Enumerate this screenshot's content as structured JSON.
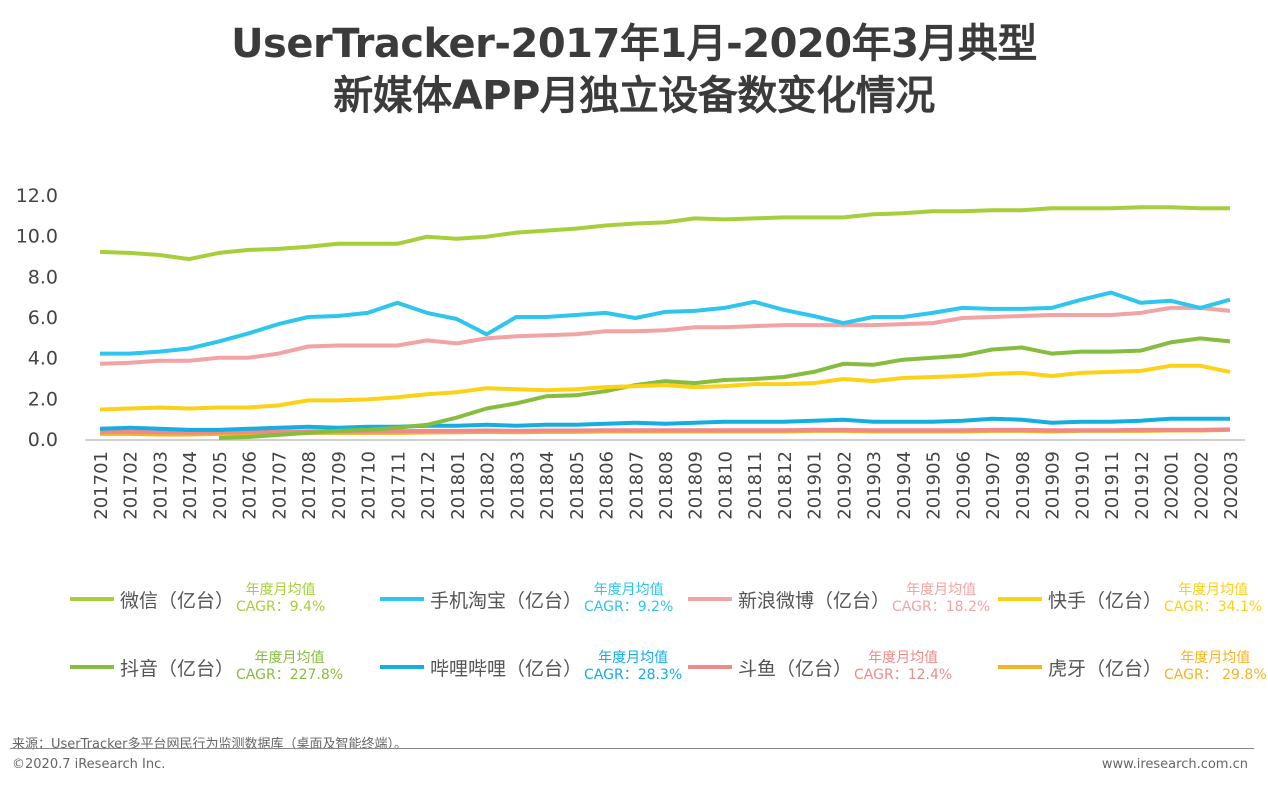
{
  "chart_data": {
    "type": "line",
    "title": "UserTracker-2017年1月-2020年3月典型\n新媒体APP月独立设备数变化情况",
    "title_lines": [
      "UserTracker-2017年1月-2020年3月典型",
      "新媒体APP月独立设备数变化情况"
    ],
    "xlabel": "",
    "ylabel": "",
    "ylim": [
      0,
      12
    ],
    "yticks": [
      "0.0",
      "2.0",
      "4.0",
      "6.0",
      "8.0",
      "10.0",
      "12.0"
    ],
    "grid": false,
    "legend_position": "bottom",
    "x": [
      "201701",
      "201702",
      "201703",
      "201704",
      "201705",
      "201706",
      "201707",
      "201708",
      "201709",
      "201710",
      "201711",
      "201712",
      "201801",
      "201802",
      "201803",
      "201804",
      "201805",
      "201806",
      "201807",
      "201808",
      "201809",
      "201810",
      "201811",
      "201812",
      "201901",
      "201902",
      "201903",
      "201904",
      "201905",
      "201906",
      "201907",
      "201908",
      "201909",
      "201910",
      "201911",
      "201912",
      "202001",
      "202002",
      "202003"
    ],
    "series": [
      {
        "name": "微信（亿台）",
        "cagr_title": "年度月均值",
        "cagr": "CAGR：9.4%",
        "color": "#a6cf3c",
        "values": [
          9.2,
          9.15,
          9.05,
          8.85,
          9.15,
          9.3,
          9.35,
          9.45,
          9.6,
          9.6,
          9.6,
          9.95,
          9.85,
          9.95,
          10.15,
          10.25,
          10.35,
          10.5,
          10.6,
          10.65,
          10.85,
          10.8,
          10.85,
          10.9,
          10.9,
          10.9,
          11.05,
          11.1,
          11.2,
          11.2,
          11.25,
          11.25,
          11.35,
          11.35,
          11.35,
          11.4,
          11.4,
          11.35,
          11.35
        ]
      },
      {
        "name": "手机淘宝（亿台）",
        "cagr_title": "年度月均值",
        "cagr": "CAGR：9.2%",
        "color": "#2ec5ee",
        "values": [
          4.2,
          4.2,
          4.3,
          4.45,
          4.8,
          5.2,
          5.65,
          6.0,
          6.05,
          6.2,
          6.7,
          6.2,
          5.9,
          5.15,
          6.0,
          6.0,
          6.1,
          6.2,
          5.95,
          6.25,
          6.3,
          6.45,
          6.75,
          6.35,
          6.05,
          5.7,
          6.0,
          6.0,
          6.2,
          6.45,
          6.4,
          6.4,
          6.45,
          6.85,
          7.2,
          6.7,
          6.8,
          6.45,
          6.85
        ]
      },
      {
        "name": "新浪微博（亿台）",
        "cagr_title": "年度月均值",
        "cagr": "CAGR：18.2%",
        "color": "#f2a3a3",
        "values": [
          3.7,
          3.75,
          3.85,
          3.85,
          4.0,
          4.0,
          4.2,
          4.55,
          4.6,
          4.6,
          4.6,
          4.85,
          4.7,
          4.95,
          5.05,
          5.1,
          5.15,
          5.3,
          5.3,
          5.35,
          5.5,
          5.5,
          5.55,
          5.6,
          5.6,
          5.6,
          5.6,
          5.65,
          5.7,
          5.95,
          6.0,
          6.05,
          6.1,
          6.1,
          6.1,
          6.2,
          6.45,
          6.45,
          6.3
        ]
      },
      {
        "name": "快手（亿台）",
        "cagr_title": "年度月均值",
        "cagr": "CAGR：34.1%",
        "color": "#fcd116",
        "values": [
          1.45,
          1.5,
          1.55,
          1.5,
          1.55,
          1.55,
          1.65,
          1.9,
          1.9,
          1.95,
          2.05,
          2.2,
          2.3,
          2.5,
          2.45,
          2.4,
          2.45,
          2.55,
          2.6,
          2.65,
          2.55,
          2.6,
          2.7,
          2.7,
          2.75,
          2.95,
          2.85,
          3.0,
          3.05,
          3.1,
          3.2,
          3.25,
          3.1,
          3.25,
          3.3,
          3.35,
          3.6,
          3.6,
          3.3
        ]
      },
      {
        "name": "抖音（亿台）",
        "cagr_title": "年度月均值",
        "cagr": "CAGR：227.8%",
        "color": "#86bd3f",
        "values": [
          null,
          null,
          null,
          null,
          0.05,
          0.1,
          0.2,
          0.3,
          0.4,
          0.45,
          0.55,
          0.7,
          1.05,
          1.5,
          1.75,
          2.1,
          2.15,
          2.35,
          2.65,
          2.85,
          2.75,
          2.9,
          2.95,
          3.05,
          3.3,
          3.7,
          3.65,
          3.9,
          4.0,
          4.1,
          4.4,
          4.5,
          4.2,
          4.3,
          4.3,
          4.35,
          4.75,
          4.95,
          4.8
        ]
      },
      {
        "name": "哔哩哔哩（亿台）",
        "cagr_title": "年度月均值",
        "cagr": "CAGR：28.3%",
        "color": "#14aee0",
        "values": [
          0.5,
          0.55,
          0.5,
          0.45,
          0.45,
          0.5,
          0.55,
          0.6,
          0.55,
          0.6,
          0.6,
          0.65,
          0.65,
          0.7,
          0.65,
          0.7,
          0.7,
          0.75,
          0.8,
          0.75,
          0.8,
          0.85,
          0.85,
          0.85,
          0.9,
          0.95,
          0.85,
          0.85,
          0.85,
          0.9,
          1.0,
          0.95,
          0.8,
          0.85,
          0.85,
          0.9,
          1.0,
          1.0,
          1.0
        ]
      },
      {
        "name": "斗鱼（亿台）",
        "cagr_title": "年度月均值",
        "cagr": "CAGR：12.4%",
        "color": "#ee8a8a",
        "values": [
          0.35,
          0.35,
          0.33,
          0.32,
          0.33,
          0.35,
          0.36,
          0.38,
          0.38,
          0.38,
          0.38,
          0.4,
          0.4,
          0.42,
          0.4,
          0.42,
          0.42,
          0.43,
          0.43,
          0.43,
          0.43,
          0.43,
          0.43,
          0.43,
          0.45,
          0.45,
          0.43,
          0.43,
          0.43,
          0.43,
          0.45,
          0.45,
          0.43,
          0.43,
          0.43,
          0.45,
          0.45,
          0.45,
          0.47
        ]
      },
      {
        "name": "虎牙（亿台）",
        "cagr_title": "年度月均值",
        "cagr": "CAGR： 29.8%",
        "color": "#f5b323",
        "values": [
          0.25,
          0.25,
          0.22,
          0.22,
          0.25,
          0.27,
          0.28,
          0.3,
          0.3,
          0.3,
          0.3,
          0.32,
          0.33,
          0.35,
          0.33,
          0.35,
          0.35,
          0.37,
          0.37,
          0.37,
          0.37,
          0.37,
          0.37,
          0.37,
          0.4,
          0.4,
          0.37,
          0.37,
          0.37,
          0.37,
          0.4,
          0.4,
          0.37,
          0.4,
          0.4,
          0.4,
          0.42,
          0.42,
          0.45
        ]
      }
    ]
  },
  "footer": {
    "source": "来源：UserTracker多平台网民行为监测数据库（桌面及智能终端）。",
    "copyright": "©2020.7 iResearch Inc.",
    "website": "www.iresearch.com.cn"
  }
}
